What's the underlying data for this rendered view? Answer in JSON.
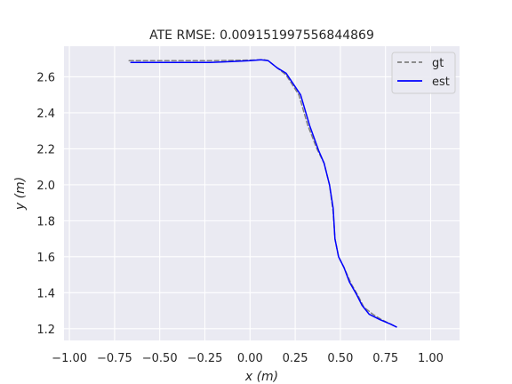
{
  "chart_data": {
    "type": "line",
    "title": "ATE RMSE: 0.009151997556844869",
    "xlabel": "x (m)",
    "ylabel": "y (m)",
    "xlim": [
      -1.03,
      1.16
    ],
    "ylim": [
      1.135,
      2.77
    ],
    "xticks": [
      -1.0,
      -0.75,
      -0.5,
      -0.25,
      0.0,
      0.25,
      0.5,
      0.75,
      1.0
    ],
    "xtick_labels": [
      "−1.00",
      "−0.75",
      "−0.50",
      "−0.25",
      "0.00",
      "0.25",
      "0.50",
      "0.75",
      "1.00"
    ],
    "yticks": [
      1.2,
      1.4,
      1.6,
      1.8,
      2.0,
      2.2,
      2.4,
      2.6
    ],
    "ytick_labels": [
      "1.2",
      "1.4",
      "1.6",
      "1.8",
      "2.0",
      "2.2",
      "2.4",
      "2.6"
    ],
    "grid": true,
    "legend_position": "top-right",
    "series": [
      {
        "name": "gt",
        "color": "#808080",
        "style": "dashed",
        "x": [
          -0.67,
          -0.4,
          -0.2,
          0.0,
          0.08,
          0.1,
          0.15,
          0.2,
          0.27,
          0.32,
          0.37,
          0.41,
          0.44,
          0.46,
          0.47,
          0.49,
          0.52,
          0.56,
          0.6,
          0.63,
          0.68,
          0.73,
          0.79,
          0.81
        ],
        "y": [
          2.69,
          2.69,
          2.69,
          2.693,
          2.695,
          2.69,
          2.65,
          2.61,
          2.5,
          2.33,
          2.2,
          2.12,
          2.0,
          1.85,
          1.7,
          1.6,
          1.54,
          1.45,
          1.38,
          1.32,
          1.28,
          1.25,
          1.22,
          1.21
        ]
      },
      {
        "name": "est",
        "color": "#0000ff",
        "style": "solid",
        "x": [
          -0.66,
          -0.4,
          -0.22,
          -0.1,
          0.0,
          0.06,
          0.1,
          0.15,
          0.2,
          0.28,
          0.33,
          0.38,
          0.41,
          0.44,
          0.46,
          0.47,
          0.49,
          0.52,
          0.55,
          0.59,
          0.62,
          0.66,
          0.72,
          0.78,
          0.81
        ],
        "y": [
          2.68,
          2.68,
          2.68,
          2.685,
          2.69,
          2.695,
          2.69,
          2.65,
          2.62,
          2.5,
          2.33,
          2.19,
          2.12,
          2.0,
          1.87,
          1.7,
          1.6,
          1.54,
          1.46,
          1.39,
          1.33,
          1.28,
          1.25,
          1.225,
          1.21
        ]
      }
    ]
  }
}
